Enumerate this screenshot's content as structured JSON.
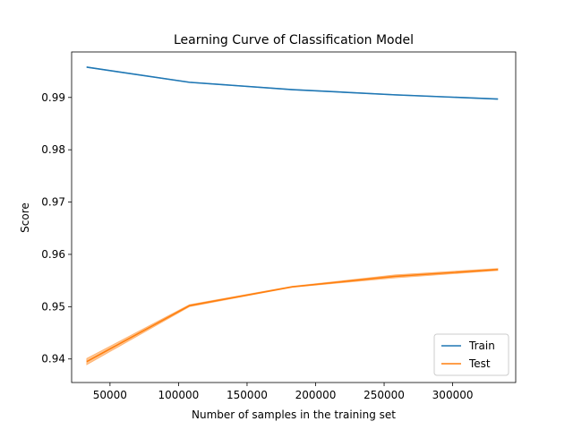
{
  "chart_data": {
    "type": "line",
    "title": "Learning Curve of Classification Model",
    "xlabel": "Number of samples in the training set",
    "ylabel": "Score",
    "xlim": [
      22000,
      346000
    ],
    "ylim": [
      0.9355,
      0.9987
    ],
    "xticks": [
      50000,
      100000,
      150000,
      200000,
      250000,
      300000
    ],
    "yticks": [
      0.94,
      0.95,
      0.96,
      0.97,
      0.98,
      0.99
    ],
    "grid": false,
    "legend_position": "lower-right",
    "x": [
      33000,
      108000,
      183000,
      258000,
      333000
    ],
    "series": [
      {
        "name": "Train",
        "color": "#1f77b4",
        "values": [
          0.9958,
          0.9929,
          0.9915,
          0.9905,
          0.9897
        ],
        "band": [
          5e-05,
          5e-05,
          5e-05,
          5e-05,
          5e-05
        ]
      },
      {
        "name": "Test",
        "color": "#ff7f0e",
        "values": [
          0.9395,
          0.9502,
          0.9538,
          0.9558,
          0.9571
        ],
        "band": [
          0.0006,
          0.0002,
          0.0001,
          0.0003,
          0.0002
        ]
      }
    ]
  }
}
